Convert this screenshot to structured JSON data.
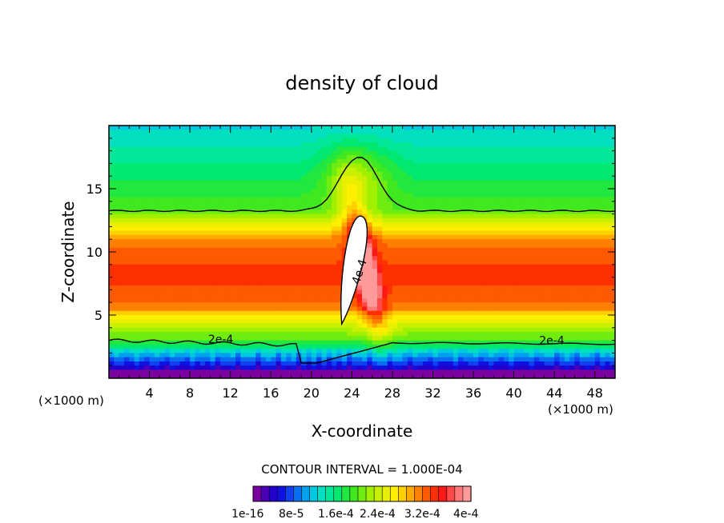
{
  "chart_data": {
    "type": "heatmap",
    "subtype": "filled-contour",
    "title": "density of cloud",
    "xlabel": "X-coordinate",
    "ylabel": "Z-coordinate",
    "x_unit_left": "(×1000 m)",
    "x_unit_right": "(×1000 m)",
    "xlim": [
      0,
      50
    ],
    "ylim": [
      0,
      20
    ],
    "xticks": [
      4,
      8,
      12,
      16,
      20,
      24,
      28,
      32,
      36,
      40,
      44,
      48
    ],
    "yticks": [
      5,
      10,
      15
    ],
    "contour_interval_text": "CONTOUR INTERVAL = 1.000E-04",
    "contour_labels": [
      {
        "text": "2e-4",
        "x": 9.8,
        "z": 2.8
      },
      {
        "text": "2e-4",
        "x": 42.5,
        "z": 2.7
      },
      {
        "text": "4e-4",
        "x": 24.7,
        "z": 7.4
      }
    ],
    "colorbar": {
      "colors": [
        "#7a00a0",
        "#4a00b4",
        "#2200cc",
        "#1010e0",
        "#1040f0",
        "#0870f0",
        "#00a0f0",
        "#00c8e0",
        "#00e0c0",
        "#00e898",
        "#00e870",
        "#20e840",
        "#40e820",
        "#70ec10",
        "#a0f000",
        "#c8f000",
        "#e8f000",
        "#fff000",
        "#ffd000",
        "#ffa800",
        "#ff8000",
        "#ff5a00",
        "#ff3000",
        "#ff1818",
        "#ff4848",
        "#ff7878",
        "#ff9a9a"
      ],
      "tick_labels": [
        "1e-16",
        "8e-5",
        "1.6e-4",
        "2.4e-4",
        "3.2e-4",
        "4e-4"
      ]
    },
    "field": {
      "background_value_by_height": [
        {
          "z_min": 0.0,
          "z_max": 0.6,
          "value": 0.0
        },
        {
          "z_min": 0.6,
          "z_max": 1.5,
          "value": 4e-05
        },
        {
          "z_min": 1.5,
          "z_max": 3.0,
          "value": 0.00013
        },
        {
          "z_min": 3.0,
          "z_max": 5.0,
          "value": 0.00022
        },
        {
          "z_min": 5.0,
          "z_max": 11.5,
          "value": 0.00035
        },
        {
          "z_min": 11.5,
          "z_max": 13.5,
          "value": 0.00026
        },
        {
          "z_min": 13.5,
          "z_max": 20.0,
          "value": 0.00017
        }
      ],
      "plume": {
        "center_x": 25,
        "top_z": 18,
        "base_z": 2,
        "max_value": 0.00045
      }
    }
  },
  "colors": {
    "frame": "#000000",
    "contour": "#000000",
    "peak": "#ffffff"
  }
}
